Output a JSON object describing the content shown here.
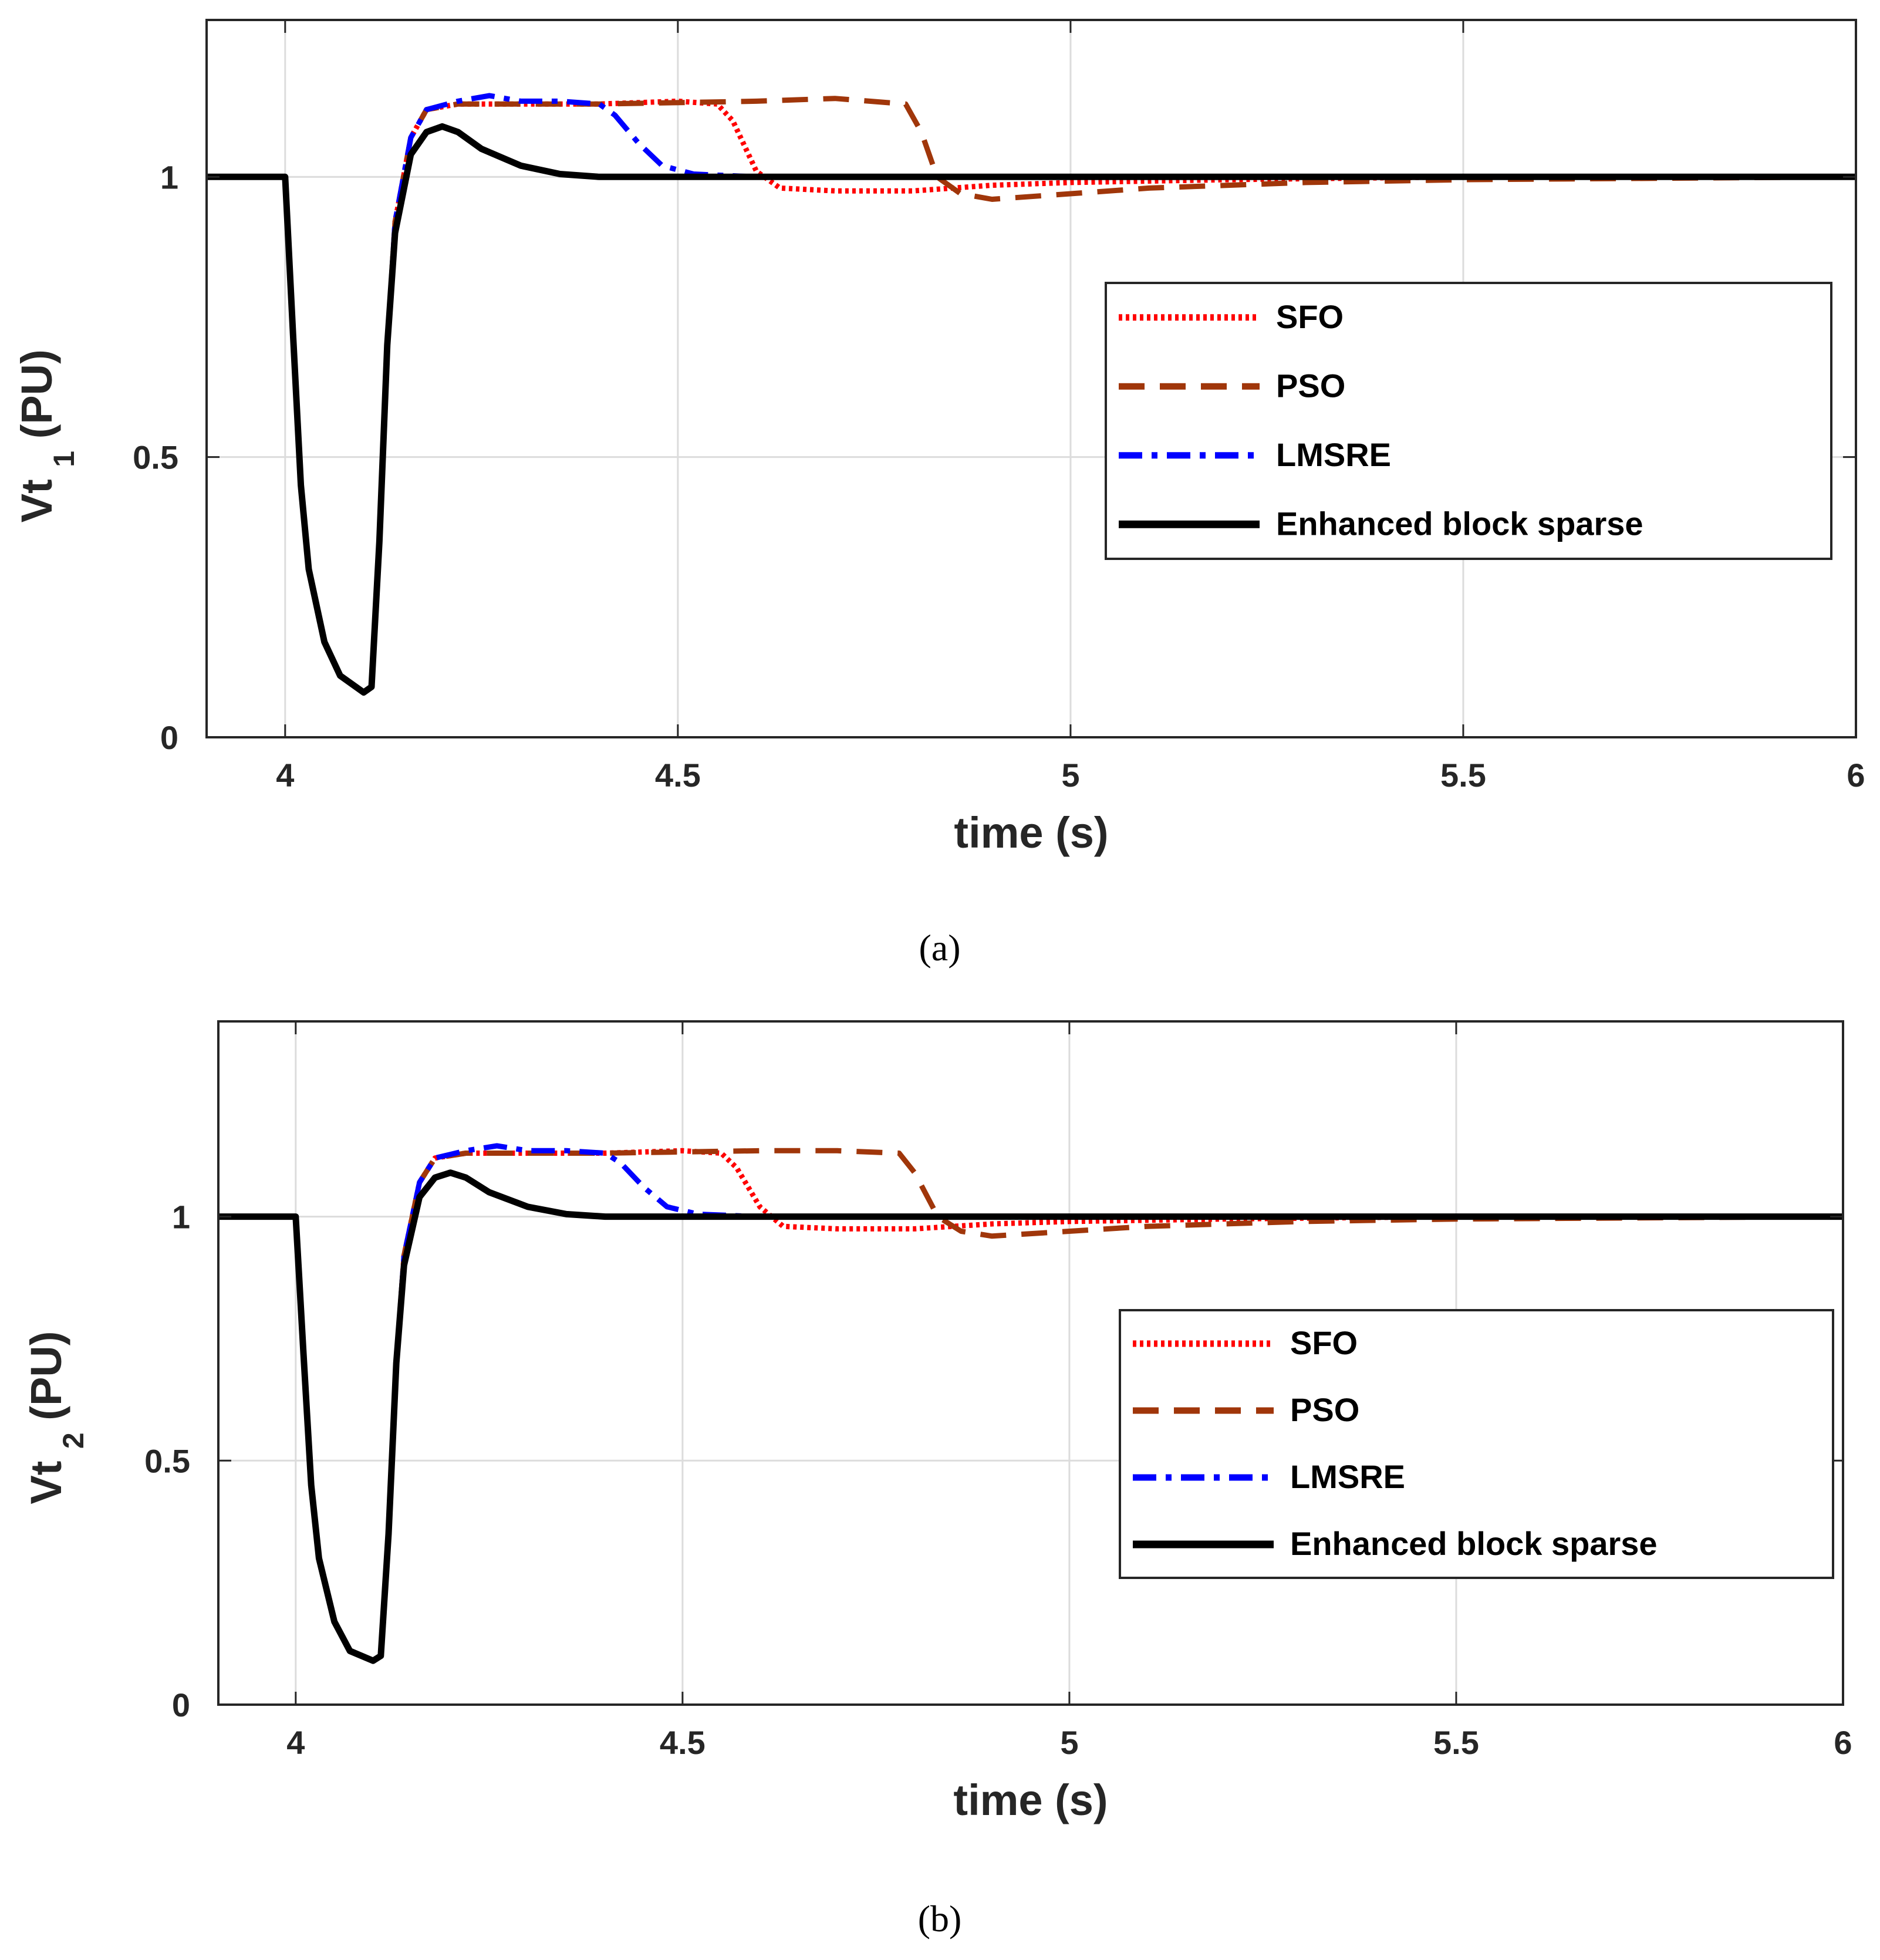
{
  "chart_data": [
    {
      "id": "a",
      "type": "line",
      "caption": "(a)",
      "xlabel": "time (s)",
      "ylabel_main": "Vt",
      "ylabel_sub": "1",
      "ylabel_unit": "(PU)",
      "xlim": [
        3.9,
        6.0
      ],
      "ylim": [
        0,
        1.28
      ],
      "xticks": [
        4,
        4.5,
        5,
        5.5,
        6
      ],
      "xtick_labels": [
        "4",
        "4.5",
        "5",
        "5.5",
        "6"
      ],
      "yticks": [
        0,
        0.5,
        1
      ],
      "ytick_labels": [
        "0",
        "0.5",
        "1"
      ],
      "grid": true,
      "legend_position": "center-right",
      "series": [
        {
          "name": "SFO",
          "color": "#ff0000",
          "style": "dotted",
          "points": [
            [
              3.9,
              1.0
            ],
            [
              4.0,
              1.0
            ],
            [
              4.01,
              0.72
            ],
            [
              4.02,
              0.45
            ],
            [
              4.03,
              0.3
            ],
            [
              4.05,
              0.17
            ],
            [
              4.07,
              0.11
            ],
            [
              4.1,
              0.08
            ],
            [
              4.11,
              0.09
            ],
            [
              4.12,
              0.35
            ],
            [
              4.13,
              0.7
            ],
            [
              4.14,
              0.92
            ],
            [
              4.16,
              1.07
            ],
            [
              4.18,
              1.12
            ],
            [
              4.22,
              1.13
            ],
            [
              4.3,
              1.13
            ],
            [
              4.4,
              1.13
            ],
            [
              4.5,
              1.135
            ],
            [
              4.55,
              1.13
            ],
            [
              4.57,
              1.1
            ],
            [
              4.6,
              1.01
            ],
            [
              4.63,
              0.98
            ],
            [
              4.7,
              0.975
            ],
            [
              4.8,
              0.975
            ],
            [
              4.9,
              0.985
            ],
            [
              5.0,
              0.99
            ],
            [
              5.2,
              0.995
            ],
            [
              5.5,
              1.0
            ],
            [
              6.0,
              1.0
            ]
          ]
        },
        {
          "name": "PSO",
          "color": "#a0360a",
          "style": "dashed",
          "points": [
            [
              3.9,
              1.0
            ],
            [
              4.0,
              1.0
            ],
            [
              4.01,
              0.72
            ],
            [
              4.02,
              0.45
            ],
            [
              4.03,
              0.3
            ],
            [
              4.05,
              0.17
            ],
            [
              4.07,
              0.11
            ],
            [
              4.1,
              0.08
            ],
            [
              4.11,
              0.09
            ],
            [
              4.12,
              0.35
            ],
            [
              4.13,
              0.7
            ],
            [
              4.14,
              0.92
            ],
            [
              4.16,
              1.07
            ],
            [
              4.18,
              1.12
            ],
            [
              4.22,
              1.13
            ],
            [
              4.4,
              1.13
            ],
            [
              4.6,
              1.135
            ],
            [
              4.7,
              1.14
            ],
            [
              4.79,
              1.13
            ],
            [
              4.81,
              1.08
            ],
            [
              4.83,
              1.0
            ],
            [
              4.86,
              0.97
            ],
            [
              4.9,
              0.96
            ],
            [
              5.0,
              0.97
            ],
            [
              5.1,
              0.98
            ],
            [
              5.3,
              0.99
            ],
            [
              5.5,
              0.995
            ],
            [
              6.0,
              1.0
            ]
          ]
        },
        {
          "name": "LMSRE",
          "color": "#0000ff",
          "style": "dashdot",
          "points": [
            [
              3.9,
              1.0
            ],
            [
              4.0,
              1.0
            ],
            [
              4.01,
              0.72
            ],
            [
              4.02,
              0.45
            ],
            [
              4.03,
              0.3
            ],
            [
              4.05,
              0.17
            ],
            [
              4.07,
              0.11
            ],
            [
              4.1,
              0.08
            ],
            [
              4.11,
              0.09
            ],
            [
              4.12,
              0.35
            ],
            [
              4.13,
              0.7
            ],
            [
              4.14,
              0.92
            ],
            [
              4.16,
              1.07
            ],
            [
              4.18,
              1.12
            ],
            [
              4.22,
              1.135
            ],
            [
              4.26,
              1.145
            ],
            [
              4.3,
              1.135
            ],
            [
              4.35,
              1.135
            ],
            [
              4.4,
              1.13
            ],
            [
              4.42,
              1.11
            ],
            [
              4.45,
              1.06
            ],
            [
              4.48,
              1.02
            ],
            [
              4.52,
              1.005
            ],
            [
              4.6,
              1.0
            ],
            [
              6.0,
              1.0
            ]
          ]
        },
        {
          "name": "Enhanced block sparse",
          "color": "#000000",
          "style": "solid",
          "points": [
            [
              3.9,
              1.0
            ],
            [
              4.0,
              1.0
            ],
            [
              4.01,
              0.72
            ],
            [
              4.02,
              0.45
            ],
            [
              4.03,
              0.3
            ],
            [
              4.05,
              0.17
            ],
            [
              4.07,
              0.11
            ],
            [
              4.1,
              0.08
            ],
            [
              4.11,
              0.09
            ],
            [
              4.12,
              0.35
            ],
            [
              4.13,
              0.7
            ],
            [
              4.14,
              0.9
            ],
            [
              4.16,
              1.04
            ],
            [
              4.18,
              1.08
            ],
            [
              4.2,
              1.09
            ],
            [
              4.22,
              1.08
            ],
            [
              4.25,
              1.05
            ],
            [
              4.3,
              1.02
            ],
            [
              4.35,
              1.005
            ],
            [
              4.4,
              1.0
            ],
            [
              6.0,
              1.0
            ]
          ]
        }
      ]
    },
    {
      "id": "b",
      "type": "line",
      "caption": "(b)",
      "xlabel": "time (s)",
      "ylabel_main": "Vt",
      "ylabel_sub": "2",
      "ylabel_unit": "(PU)",
      "xlim": [
        3.9,
        6.0
      ],
      "ylim": [
        0,
        1.4
      ],
      "xticks": [
        4,
        4.5,
        5,
        5.5,
        6
      ],
      "xtick_labels": [
        "4",
        "4.5",
        "5",
        "5.5",
        "6"
      ],
      "yticks": [
        0,
        0.5,
        1
      ],
      "ytick_labels": [
        "0",
        "0.5",
        "1"
      ],
      "grid": true,
      "legend_position": "lower-right",
      "series": [
        {
          "name": "SFO",
          "color": "#ff0000",
          "style": "dotted",
          "points": [
            [
              3.9,
              1.0
            ],
            [
              4.0,
              1.0
            ],
            [
              4.01,
              0.72
            ],
            [
              4.02,
              0.45
            ],
            [
              4.03,
              0.3
            ],
            [
              4.05,
              0.17
            ],
            [
              4.07,
              0.11
            ],
            [
              4.1,
              0.09
            ],
            [
              4.11,
              0.1
            ],
            [
              4.12,
              0.35
            ],
            [
              4.13,
              0.7
            ],
            [
              4.14,
              0.92
            ],
            [
              4.16,
              1.07
            ],
            [
              4.18,
              1.12
            ],
            [
              4.22,
              1.13
            ],
            [
              4.3,
              1.13
            ],
            [
              4.4,
              1.13
            ],
            [
              4.5,
              1.135
            ],
            [
              4.55,
              1.13
            ],
            [
              4.57,
              1.1
            ],
            [
              4.6,
              1.02
            ],
            [
              4.63,
              0.98
            ],
            [
              4.7,
              0.975
            ],
            [
              4.8,
              0.975
            ],
            [
              4.9,
              0.985
            ],
            [
              5.0,
              0.99
            ],
            [
              5.2,
              0.995
            ],
            [
              5.5,
              1.0
            ],
            [
              6.0,
              1.0
            ]
          ]
        },
        {
          "name": "PSO",
          "color": "#a0360a",
          "style": "dashed",
          "points": [
            [
              3.9,
              1.0
            ],
            [
              4.0,
              1.0
            ],
            [
              4.01,
              0.72
            ],
            [
              4.02,
              0.45
            ],
            [
              4.03,
              0.3
            ],
            [
              4.05,
              0.17
            ],
            [
              4.07,
              0.11
            ],
            [
              4.1,
              0.09
            ],
            [
              4.11,
              0.1
            ],
            [
              4.12,
              0.35
            ],
            [
              4.13,
              0.7
            ],
            [
              4.14,
              0.92
            ],
            [
              4.16,
              1.07
            ],
            [
              4.18,
              1.12
            ],
            [
              4.22,
              1.13
            ],
            [
              4.4,
              1.13
            ],
            [
              4.6,
              1.135
            ],
            [
              4.7,
              1.135
            ],
            [
              4.78,
              1.13
            ],
            [
              4.8,
              1.09
            ],
            [
              4.83,
              1.0
            ],
            [
              4.86,
              0.97
            ],
            [
              4.9,
              0.96
            ],
            [
              5.0,
              0.97
            ],
            [
              5.1,
              0.98
            ],
            [
              5.3,
              0.99
            ],
            [
              5.5,
              0.995
            ],
            [
              6.0,
              1.0
            ]
          ]
        },
        {
          "name": "LMSRE",
          "color": "#0000ff",
          "style": "dashdot",
          "points": [
            [
              3.9,
              1.0
            ],
            [
              4.0,
              1.0
            ],
            [
              4.01,
              0.72
            ],
            [
              4.02,
              0.45
            ],
            [
              4.03,
              0.3
            ],
            [
              4.05,
              0.17
            ],
            [
              4.07,
              0.11
            ],
            [
              4.1,
              0.09
            ],
            [
              4.11,
              0.1
            ],
            [
              4.12,
              0.35
            ],
            [
              4.13,
              0.7
            ],
            [
              4.14,
              0.92
            ],
            [
              4.16,
              1.07
            ],
            [
              4.18,
              1.12
            ],
            [
              4.22,
              1.135
            ],
            [
              4.26,
              1.145
            ],
            [
              4.3,
              1.135
            ],
            [
              4.35,
              1.135
            ],
            [
              4.4,
              1.13
            ],
            [
              4.42,
              1.11
            ],
            [
              4.45,
              1.06
            ],
            [
              4.48,
              1.02
            ],
            [
              4.52,
              1.005
            ],
            [
              4.6,
              1.0
            ],
            [
              6.0,
              1.0
            ]
          ]
        },
        {
          "name": "Enhanced block sparse",
          "color": "#000000",
          "style": "solid",
          "points": [
            [
              3.9,
              1.0
            ],
            [
              4.0,
              1.0
            ],
            [
              4.01,
              0.72
            ],
            [
              4.02,
              0.45
            ],
            [
              4.03,
              0.3
            ],
            [
              4.05,
              0.17
            ],
            [
              4.07,
              0.11
            ],
            [
              4.1,
              0.09
            ],
            [
              4.11,
              0.1
            ],
            [
              4.12,
              0.35
            ],
            [
              4.13,
              0.7
            ],
            [
              4.14,
              0.9
            ],
            [
              4.16,
              1.04
            ],
            [
              4.18,
              1.08
            ],
            [
              4.2,
              1.09
            ],
            [
              4.22,
              1.08
            ],
            [
              4.25,
              1.05
            ],
            [
              4.3,
              1.02
            ],
            [
              4.35,
              1.005
            ],
            [
              4.4,
              1.0
            ],
            [
              6.0,
              1.0
            ]
          ]
        }
      ]
    }
  ]
}
